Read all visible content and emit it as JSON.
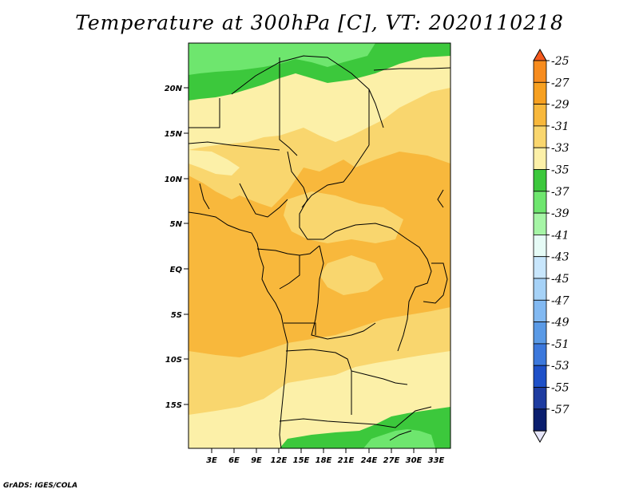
{
  "title": "Temperature at 300hPa [C], VT: 2020110218",
  "credit": "GrADS: IGES/COLA",
  "lat_labels": [
    "20N",
    "15N",
    "10N",
    "5N",
    "EQ",
    "5S",
    "10S",
    "15S"
  ],
  "lon_labels": [
    "3E",
    "6E",
    "9E",
    "12E",
    "15E",
    "18E",
    "21E",
    "24E",
    "27E",
    "30E",
    "33E"
  ],
  "colorbar": {
    "levels": [
      "-25",
      "-27",
      "-29",
      "-31",
      "-33",
      "-35",
      "-37",
      "-39",
      "-41",
      "-43",
      "-45",
      "-47",
      "-49",
      "-51",
      "-53",
      "-55",
      "-57"
    ],
    "colors": [
      "#f45a1e",
      "#f78c1e",
      "#f7a020",
      "#f8b83c",
      "#f9d66e",
      "#fcf0a8",
      "#3cc83c",
      "#6ee66e",
      "#a6f5a6",
      "#e6fbf6",
      "#c8e6fc",
      "#a6d2f7",
      "#82b9f2",
      "#5a9ae6",
      "#3c78dc",
      "#1e50c8",
      "#1e3ca0",
      "#0a1e6e",
      "#e6e6fa"
    ]
  },
  "colors": {
    "t_25": "#f45a1e",
    "t_27": "#f78c1e",
    "t_29": "#f7a020",
    "t_31": "#f8b83c",
    "t_33": "#f9d66e",
    "t_35": "#fcf0a8",
    "t_37": "#3cc83c",
    "t_39": "#6ee66e"
  }
}
